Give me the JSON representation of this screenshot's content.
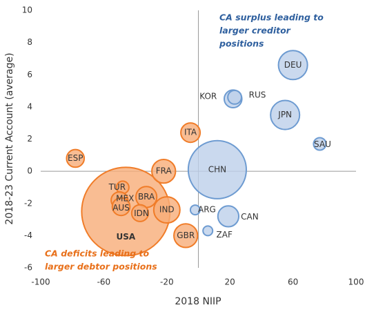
{
  "chart_data": {
    "type": "bubble",
    "x_label": "2018 NIIP",
    "y_label": "2018-23 Current Account (average)",
    "xlim": [
      -100,
      100
    ],
    "xticks": [
      -100,
      -60,
      -20,
      20,
      60,
      100
    ],
    "ylim": [
      -6,
      10
    ],
    "yticks": [
      -6,
      -4,
      -2,
      0,
      2,
      4,
      6,
      8,
      10
    ],
    "zero_lines": true,
    "annotations": [
      {
        "lines": [
          "CA surplus leading to",
          "larger creditor",
          "positions"
        ],
        "color": "#2e5f9e"
      },
      {
        "lines": [
          "CA deficits leading to",
          "larger debtor positions"
        ],
        "color": "#e8701a"
      }
    ],
    "series": [
      {
        "color": "#f07c28",
        "fill": "#f7ad78",
        "labels": [
          "USA",
          "ESP",
          "ITA",
          "FRA",
          "TUR",
          "MEX",
          "BRA",
          "AUS",
          "IDN",
          "IND",
          "GBR"
        ],
        "x": [
          -46,
          -78,
          -5,
          -22,
          -48,
          -50,
          -33,
          -49,
          -37,
          -20,
          -8
        ],
        "values": [
          -2.5,
          0.8,
          2.4,
          0,
          -1,
          -1.8,
          -1.6,
          -2.2,
          -2.6,
          -2.4,
          -4
        ],
        "sizes": [
          25,
          1.0,
          1.2,
          1.8,
          0.5,
          0.9,
          1.4,
          1.0,
          0.9,
          2.2,
          1.8
        ]
      },
      {
        "color": "#6d9bd1",
        "fill": "#bdd0ea",
        "labels": [
          "DEU",
          "JPN",
          "KOR",
          "RUS",
          "SAU",
          "CHN",
          "ARG",
          "CAN",
          "ZAF"
        ],
        "x": [
          60,
          55,
          22,
          23,
          77,
          12,
          -2,
          19,
          6
        ],
        "values": [
          6.6,
          3.5,
          4.5,
          4.6,
          1.7,
          0.1,
          -2.4,
          -2.8,
          -3.7
        ],
        "sizes": [
          2.7,
          2.7,
          1.0,
          0.6,
          0.5,
          10.8,
          0.3,
          1.4,
          0.3
        ]
      }
    ]
  }
}
